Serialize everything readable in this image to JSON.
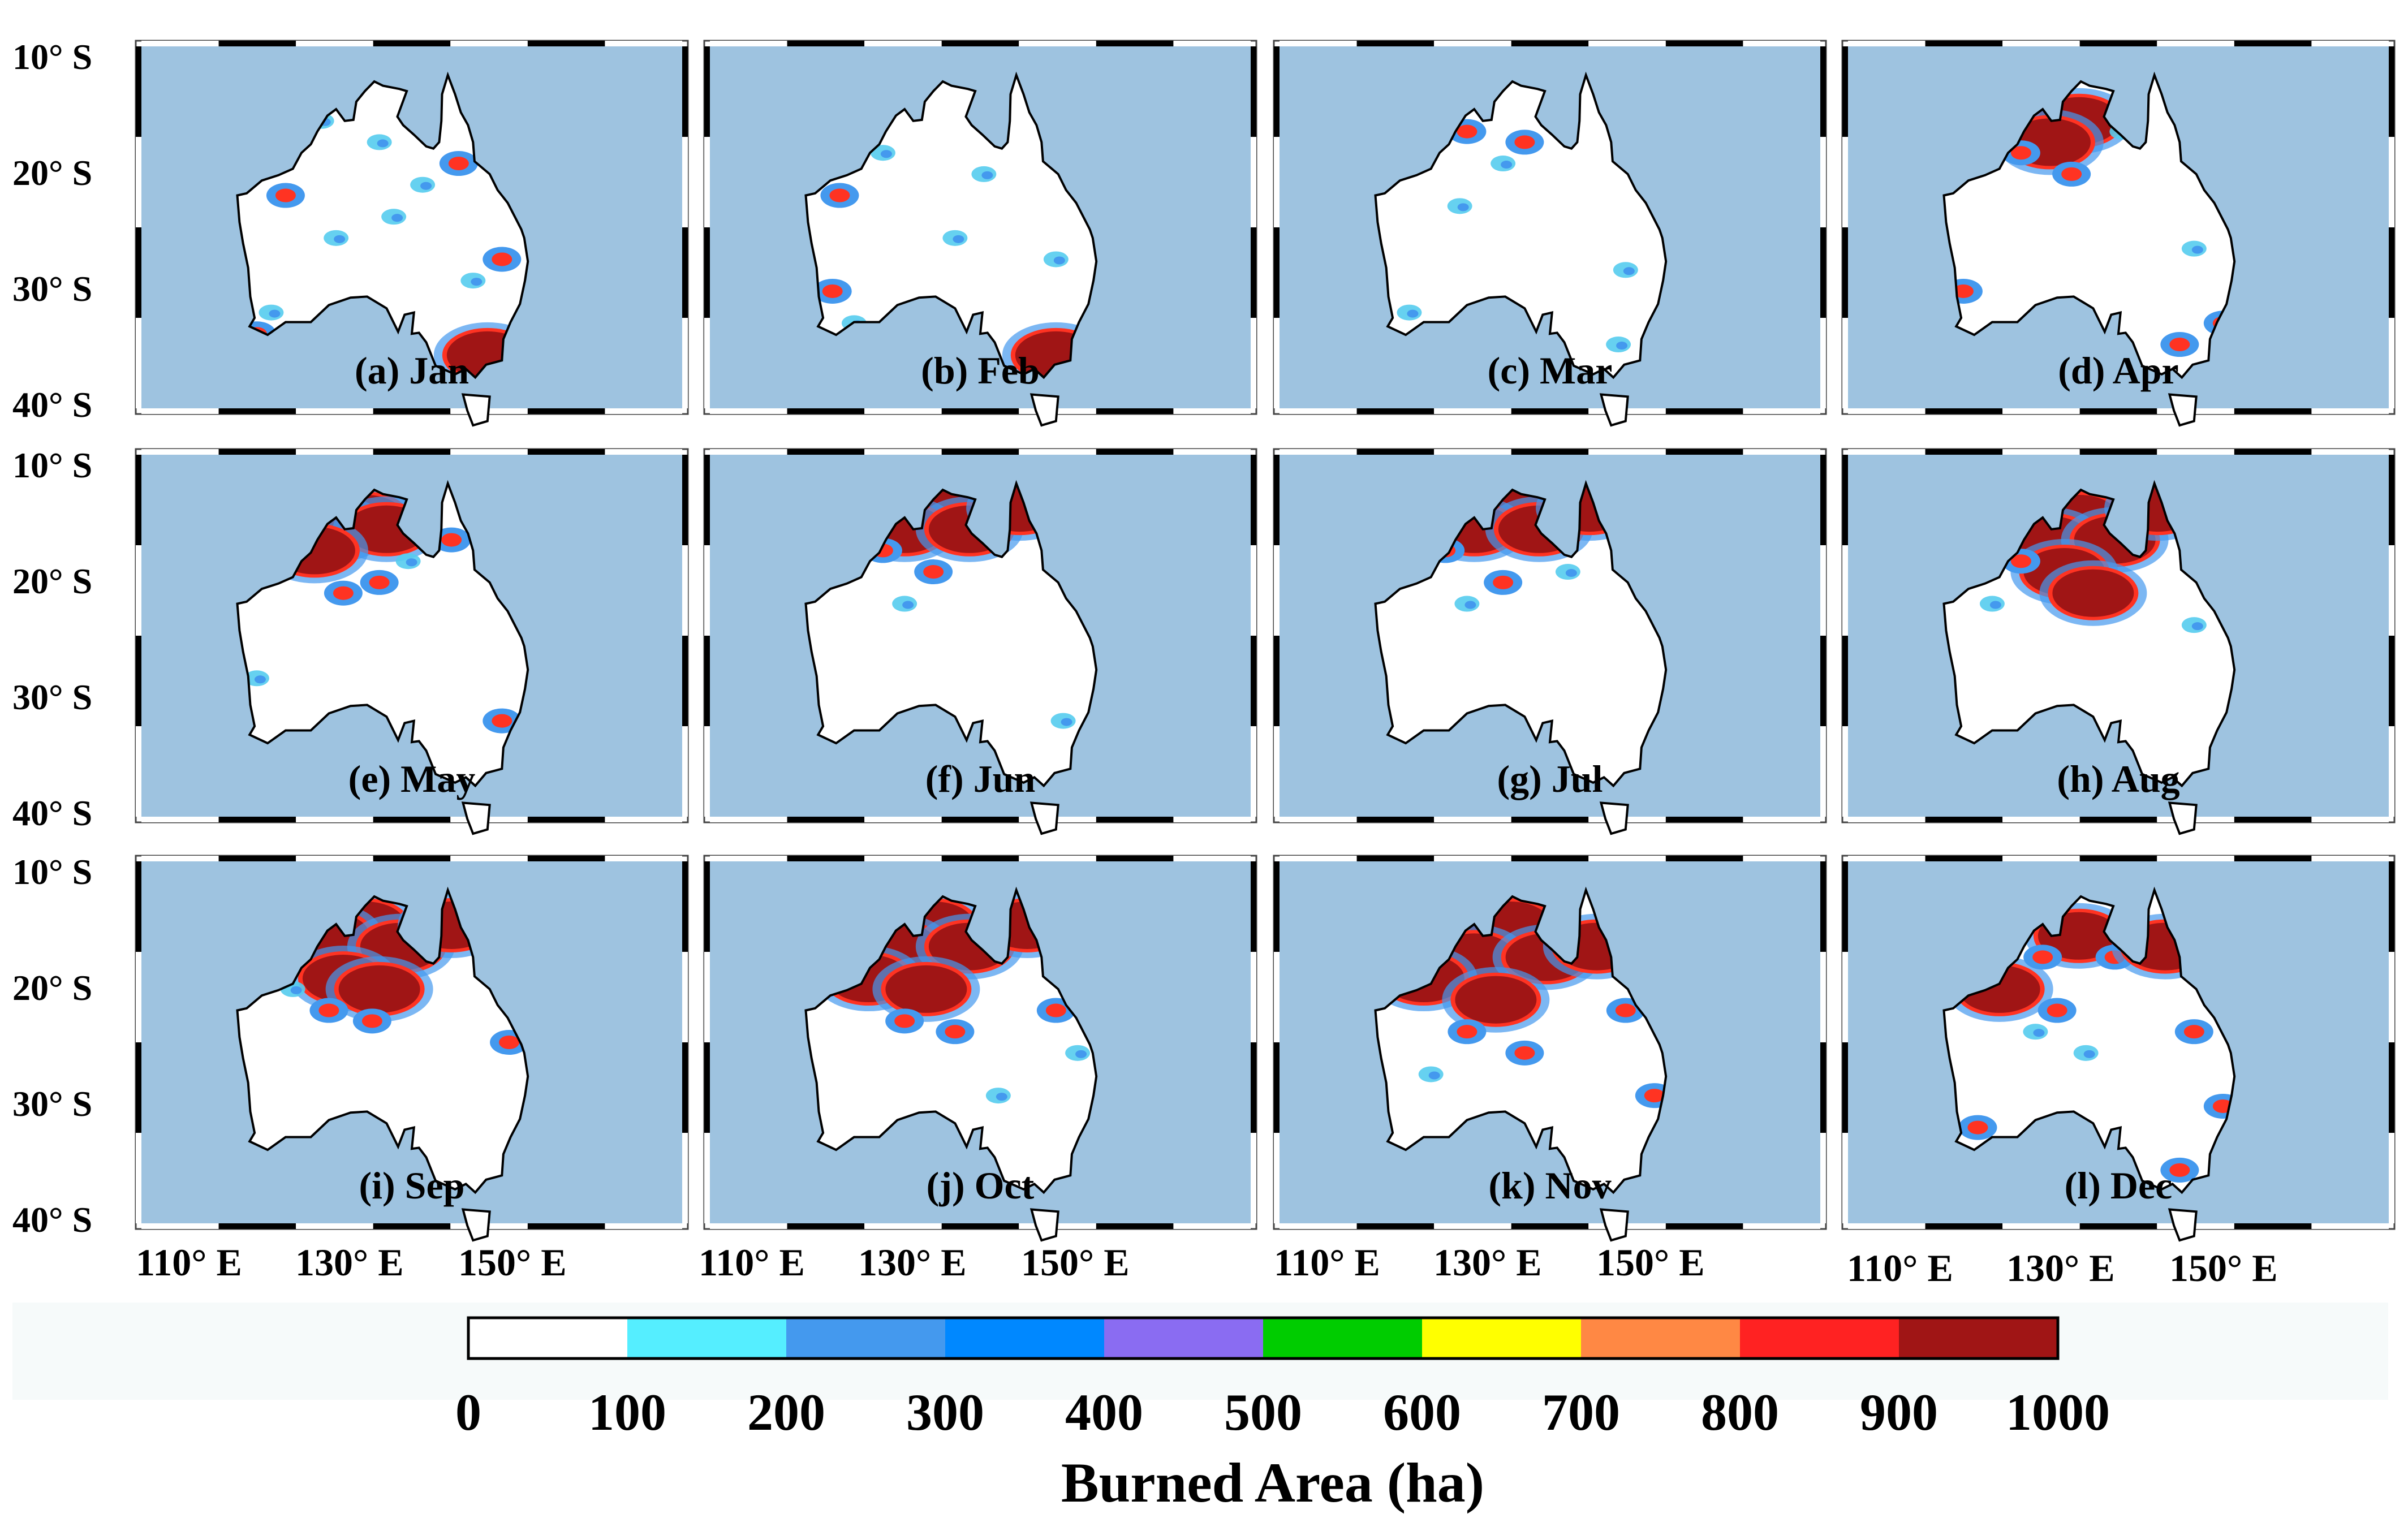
{
  "figure": {
    "panels": [
      {
        "label": "(a) Jan",
        "month": "Jan",
        "hotspots": [
          [
            -15,
            125,
            "l"
          ],
          [
            -17,
            133,
            "l"
          ],
          [
            -19,
            144,
            "m"
          ],
          [
            -22,
            120,
            "m"
          ],
          [
            -24,
            135,
            "l"
          ],
          [
            -26,
            127,
            "l"
          ],
          [
            -28,
            150,
            "m"
          ],
          [
            -33,
            118,
            "l"
          ],
          [
            -37,
            148,
            "h"
          ],
          [
            -35,
            116,
            "m"
          ],
          [
            -21,
            139,
            "l"
          ],
          [
            -30,
            146,
            "l"
          ]
        ]
      },
      {
        "label": "(b) Feb",
        "month": "Feb",
        "hotspots": [
          [
            -18,
            124,
            "l"
          ],
          [
            -22,
            118,
            "m"
          ],
          [
            -26,
            134,
            "l"
          ],
          [
            -31,
            117,
            "m"
          ],
          [
            -37,
            148,
            "h"
          ],
          [
            -20,
            138,
            "l"
          ],
          [
            -28,
            148,
            "l"
          ],
          [
            -34,
            120,
            "l"
          ]
        ]
      },
      {
        "label": "(c) Mar",
        "month": "Mar",
        "hotspots": [
          [
            -16,
            126,
            "m"
          ],
          [
            -17,
            134,
            "m"
          ],
          [
            -19,
            131,
            "l"
          ],
          [
            -23,
            125,
            "l"
          ],
          [
            -36,
            147,
            "l"
          ],
          [
            -33,
            118,
            "l"
          ],
          [
            -29,
            148,
            "l"
          ]
        ]
      },
      {
        "label": "(d) Apr",
        "month": "Apr",
        "hotspots": [
          [
            -15,
            132,
            "h"
          ],
          [
            -17,
            128,
            "h"
          ],
          [
            -18,
            124,
            "m"
          ],
          [
            -20,
            131,
            "m"
          ],
          [
            -16,
            138,
            "l"
          ],
          [
            -31,
            116,
            "m"
          ],
          [
            -36,
            146,
            "m"
          ],
          [
            -34,
            152,
            "m"
          ],
          [
            -27,
            148,
            "l"
          ]
        ]
      },
      {
        "label": "(e) May",
        "month": "May",
        "hotspots": [
          [
            -14,
            131,
            "h"
          ],
          [
            -15,
            127,
            "h"
          ],
          [
            -15,
            134,
            "h"
          ],
          [
            -17,
            124,
            "h"
          ],
          [
            -16,
            143,
            "m"
          ],
          [
            -21,
            128,
            "m"
          ],
          [
            -20,
            133,
            "m"
          ],
          [
            -18,
            137,
            "l"
          ],
          [
            -33,
            150,
            "m"
          ],
          [
            -29,
            116,
            "l"
          ]
        ]
      },
      {
        "label": "(f) Jun",
        "month": "Jun",
        "hotspots": [
          [
            -13,
            132,
            "h"
          ],
          [
            -15,
            127,
            "h"
          ],
          [
            -15,
            136,
            "h"
          ],
          [
            -17,
            124,
            "m"
          ],
          [
            -13,
            143,
            "h"
          ],
          [
            -19,
            131,
            "m"
          ],
          [
            -22,
            127,
            "l"
          ],
          [
            -33,
            149,
            "l"
          ]
        ]
      },
      {
        "label": "(g) Jul",
        "month": "Jul",
        "hotspots": [
          [
            -13,
            132,
            "h"
          ],
          [
            -15,
            127,
            "h"
          ],
          [
            -15,
            136,
            "h"
          ],
          [
            -17,
            123,
            "m"
          ],
          [
            -13,
            143,
            "h"
          ],
          [
            -20,
            131,
            "m"
          ],
          [
            -22,
            126,
            "l"
          ],
          [
            -19,
            140,
            "l"
          ]
        ]
      },
      {
        "label": "(h) Aug",
        "month": "Aug",
        "hotspots": [
          [
            -14,
            132,
            "h"
          ],
          [
            -16,
            128,
            "h"
          ],
          [
            -16,
            137,
            "h"
          ],
          [
            -19,
            130,
            "h"
          ],
          [
            -21,
            134,
            "h"
          ],
          [
            -18,
            124,
            "m"
          ],
          [
            -13,
            143,
            "h"
          ],
          [
            -24,
            148,
            "l"
          ],
          [
            -22,
            120,
            "l"
          ]
        ]
      },
      {
        "label": "(i) Sep",
        "month": "Sep",
        "hotspots": [
          [
            -14,
            131,
            "h"
          ],
          [
            -15,
            126,
            "h"
          ],
          [
            -16,
            136,
            "h"
          ],
          [
            -19,
            128,
            "h"
          ],
          [
            -20,
            133,
            "h"
          ],
          [
            -14,
            143,
            "h"
          ],
          [
            -23,
            132,
            "m"
          ],
          [
            -22,
            126,
            "m"
          ],
          [
            -25,
            151,
            "m"
          ],
          [
            -20,
            121,
            "l"
          ]
        ]
      },
      {
        "label": "(j) Oct",
        "month": "Oct",
        "hotspots": [
          [
            -14,
            131,
            "h"
          ],
          [
            -16,
            126,
            "h"
          ],
          [
            -16,
            136,
            "h"
          ],
          [
            -19,
            122,
            "h"
          ],
          [
            -20,
            130,
            "h"
          ],
          [
            -14,
            144,
            "h"
          ],
          [
            -23,
            127,
            "m"
          ],
          [
            -24,
            134,
            "m"
          ],
          [
            -22,
            148,
            "m"
          ],
          [
            -26,
            151,
            "l"
          ],
          [
            -30,
            140,
            "l"
          ]
        ]
      },
      {
        "label": "(k) Nov",
        "month": "Nov",
        "hotspots": [
          [
            -14,
            132,
            "h"
          ],
          [
            -17,
            127,
            "h"
          ],
          [
            -17,
            137,
            "h"
          ],
          [
            -19,
            120,
            "h"
          ],
          [
            -21,
            130,
            "h"
          ],
          [
            -16,
            144,
            "h"
          ],
          [
            -24,
            126,
            "m"
          ],
          [
            -26,
            134,
            "m"
          ],
          [
            -22,
            148,
            "m"
          ],
          [
            -30,
            152,
            "m"
          ],
          [
            -28,
            121,
            "l"
          ]
        ]
      },
      {
        "label": "(l) Dec",
        "month": "Dec",
        "hotspots": [
          [
            -15,
            132,
            "h"
          ],
          [
            -17,
            127,
            "m"
          ],
          [
            -17,
            137,
            "m"
          ],
          [
            -20,
            121,
            "h"
          ],
          [
            -22,
            129,
            "m"
          ],
          [
            -16,
            144,
            "h"
          ],
          [
            -24,
            126,
            "l"
          ],
          [
            -26,
            133,
            "l"
          ],
          [
            -24,
            148,
            "m"
          ],
          [
            -31,
            152,
            "m"
          ],
          [
            -33,
            118,
            "m"
          ],
          [
            -37,
            146,
            "m"
          ]
        ]
      }
    ],
    "lat_ticks": [
      "10° S",
      "20° S",
      "30° S",
      "40° S"
    ],
    "lon_ticks": [
      "110° E",
      "130° E",
      "150° E"
    ],
    "colorbar": {
      "title": "Burned Area (ha)",
      "tick_labels": [
        "0",
        "100",
        "200",
        "300",
        "400",
        "500",
        "600",
        "700",
        "800",
        "900",
        "1000"
      ],
      "colors": [
        "#ffffff",
        "#55eeff",
        "#4499ee",
        "#0088ff",
        "#8a6cf2",
        "#00cc00",
        "#ffff00",
        "#ff8844",
        "#ff2222",
        "#a01515"
      ]
    },
    "colors": {
      "ocean": "#9ec3e0",
      "land": "#ffffff",
      "coast": "#000000",
      "hotspot_high": "#a01515",
      "hotspot_mid": "#ff3322",
      "hotspot_low": "#4499ee"
    }
  }
}
